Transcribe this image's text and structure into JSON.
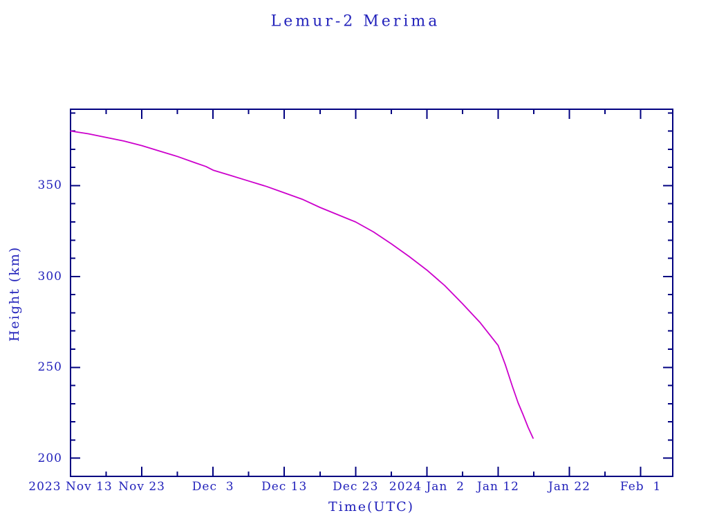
{
  "title": "Lemur-2 Merima",
  "colors": {
    "background": "#ffffff",
    "text": "#2222bb",
    "axis": "#000080",
    "curve": "#cc00cc"
  },
  "chart_data": {
    "type": "line",
    "title": "Lemur-2 Merima",
    "xlabel": "Time(UTC)",
    "ylabel": "Height (km)",
    "grid": false,
    "legend": "none",
    "x_unit": "days since 2023 Nov 13 00:00 UTC",
    "xlim_days": [
      0,
      84.5
    ],
    "ylim_km": [
      190,
      392
    ],
    "x_major_ticks": [
      {
        "day": 0,
        "label": "2023 Nov 13"
      },
      {
        "day": 10,
        "label": "Nov 23"
      },
      {
        "day": 20,
        "label": "Dec  3"
      },
      {
        "day": 30,
        "label": "Dec 13"
      },
      {
        "day": 40,
        "label": "Dec 23"
      },
      {
        "day": 50,
        "label": "2024 Jan  2"
      },
      {
        "day": 60,
        "label": "Jan 12"
      },
      {
        "day": 70,
        "label": "Jan 22"
      },
      {
        "day": 80,
        "label": "Feb  1"
      }
    ],
    "x_minor_tick_days": [
      5,
      15,
      25,
      35,
      45,
      55,
      65,
      75
    ],
    "y_major_ticks": [
      {
        "km": 200,
        "label": "200"
      },
      {
        "km": 250,
        "label": "250"
      },
      {
        "km": 300,
        "label": "300"
      },
      {
        "km": 350,
        "label": "350"
      }
    ],
    "y_minor_tick_km": [
      210,
      220,
      230,
      240,
      260,
      270,
      280,
      290,
      310,
      320,
      330,
      340,
      360,
      370,
      380,
      390
    ],
    "series": [
      {
        "name": "Lemur-2 Merima height",
        "color": "#cc00cc",
        "points": [
          [
            0,
            380
          ],
          [
            2.5,
            378.5
          ],
          [
            5,
            376.5
          ],
          [
            7.5,
            374.5
          ],
          [
            10,
            372
          ],
          [
            12.5,
            369
          ],
          [
            15,
            366
          ],
          [
            17.5,
            362.5
          ],
          [
            19,
            360.5
          ],
          [
            20,
            358.5
          ],
          [
            22.5,
            355.5
          ],
          [
            25,
            352.5
          ],
          [
            27.5,
            349.5
          ],
          [
            30,
            346
          ],
          [
            32.5,
            342.5
          ],
          [
            35,
            338
          ],
          [
            37.5,
            334
          ],
          [
            40,
            330
          ],
          [
            42.5,
            324.5
          ],
          [
            45,
            318
          ],
          [
            47.5,
            311
          ],
          [
            50,
            303.5
          ],
          [
            52.5,
            295
          ],
          [
            55,
            285
          ],
          [
            57.5,
            274.5
          ],
          [
            60,
            262
          ],
          [
            61,
            251.5
          ],
          [
            62,
            239.5
          ],
          [
            62.8,
            230.5
          ],
          [
            63.5,
            224
          ],
          [
            64.2,
            217
          ],
          [
            64.9,
            211
          ]
        ]
      }
    ]
  }
}
